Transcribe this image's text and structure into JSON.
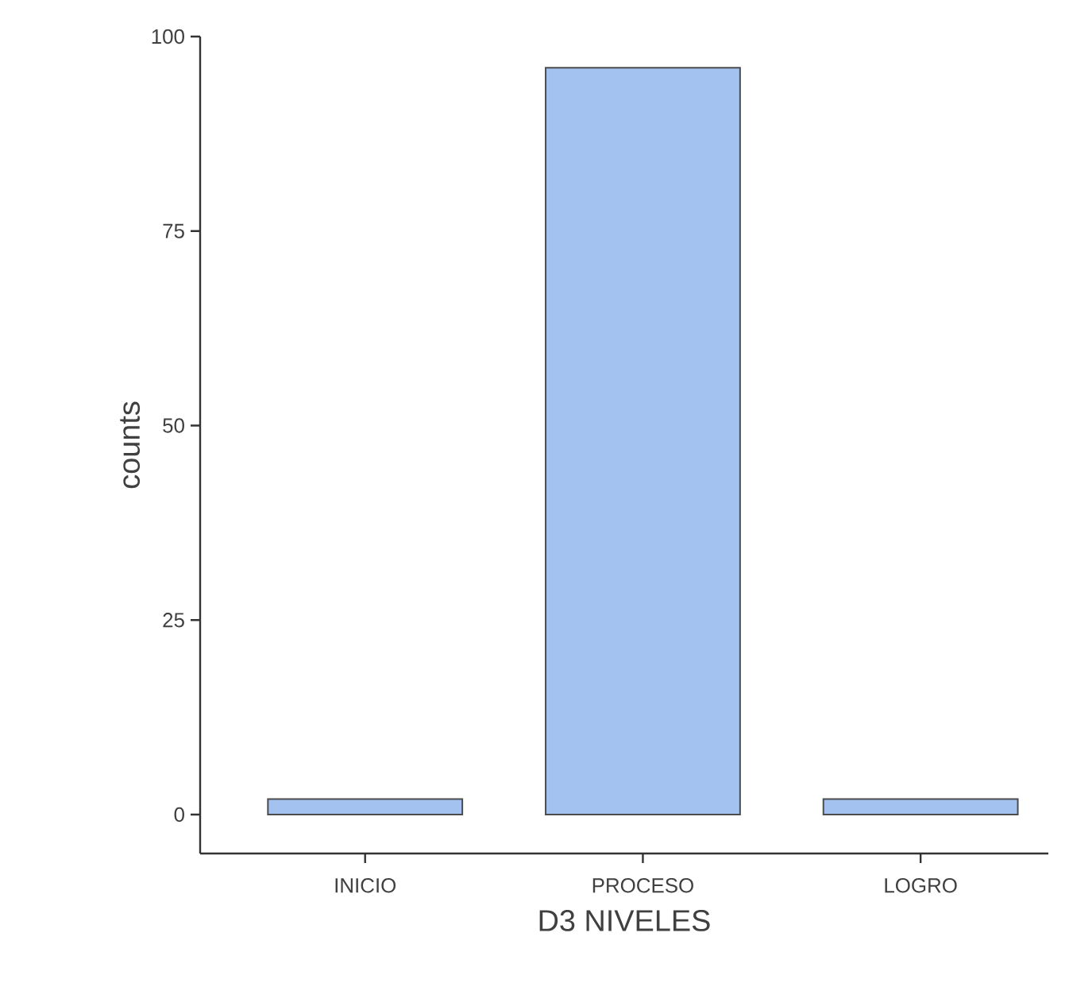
{
  "chart_data": {
    "type": "bar",
    "xlabel": "D3 NIVELES",
    "ylabel": "counts",
    "categories": [
      "INICIO",
      "PROCESO",
      "LOGRO"
    ],
    "values": [
      2,
      96,
      2
    ],
    "color": "#a4c2f0",
    "ylim": [
      -5,
      100
    ],
    "yticks": [
      0,
      25,
      50,
      75,
      100
    ]
  }
}
